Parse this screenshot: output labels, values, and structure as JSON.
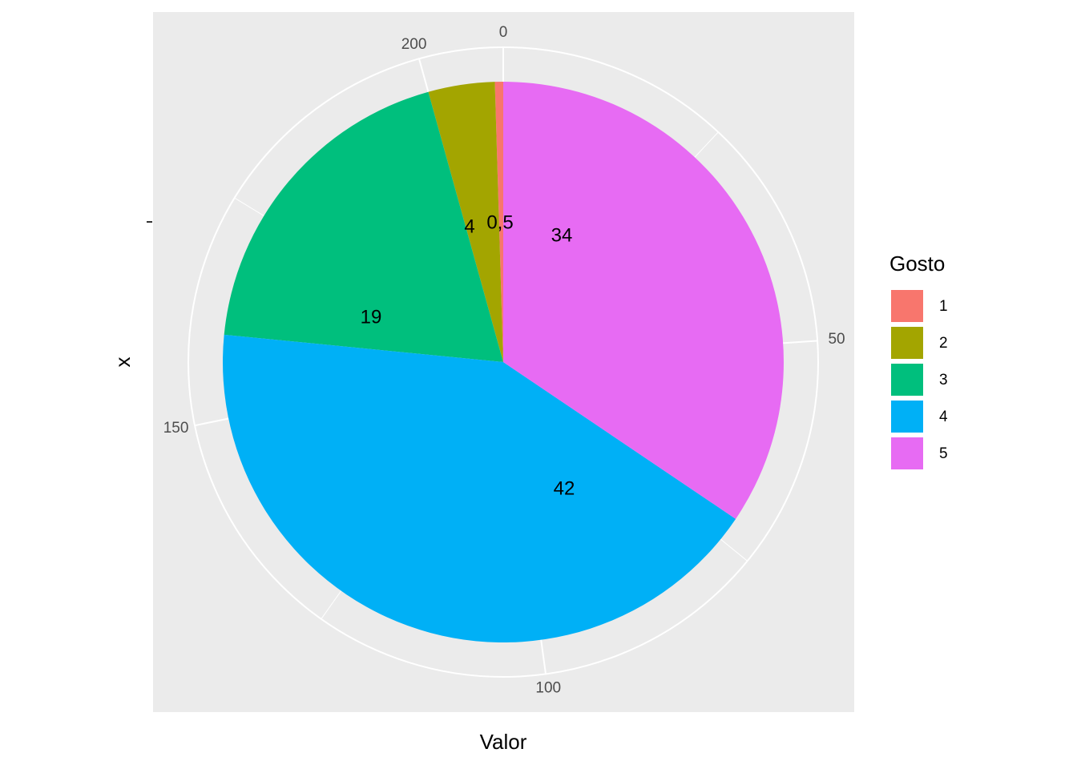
{
  "chart_data": {
    "type": "pie",
    "x_label": "Valor",
    "y_label": "x",
    "legend_title": "Gosto",
    "categories": [
      "1",
      "2",
      "3",
      "4",
      "5"
    ],
    "values": [
      1,
      8,
      40,
      88,
      72
    ],
    "value_labels": [
      "0,5",
      "4",
      "19",
      "42",
      "34"
    ],
    "colors": [
      "#F8766D",
      "#A3A500",
      "#00BF7D",
      "#00B0F6",
      "#E76BF3"
    ],
    "ylim": [
      0,
      209
    ],
    "yticks": [
      0,
      50,
      100,
      150,
      200
    ],
    "grid": true
  }
}
